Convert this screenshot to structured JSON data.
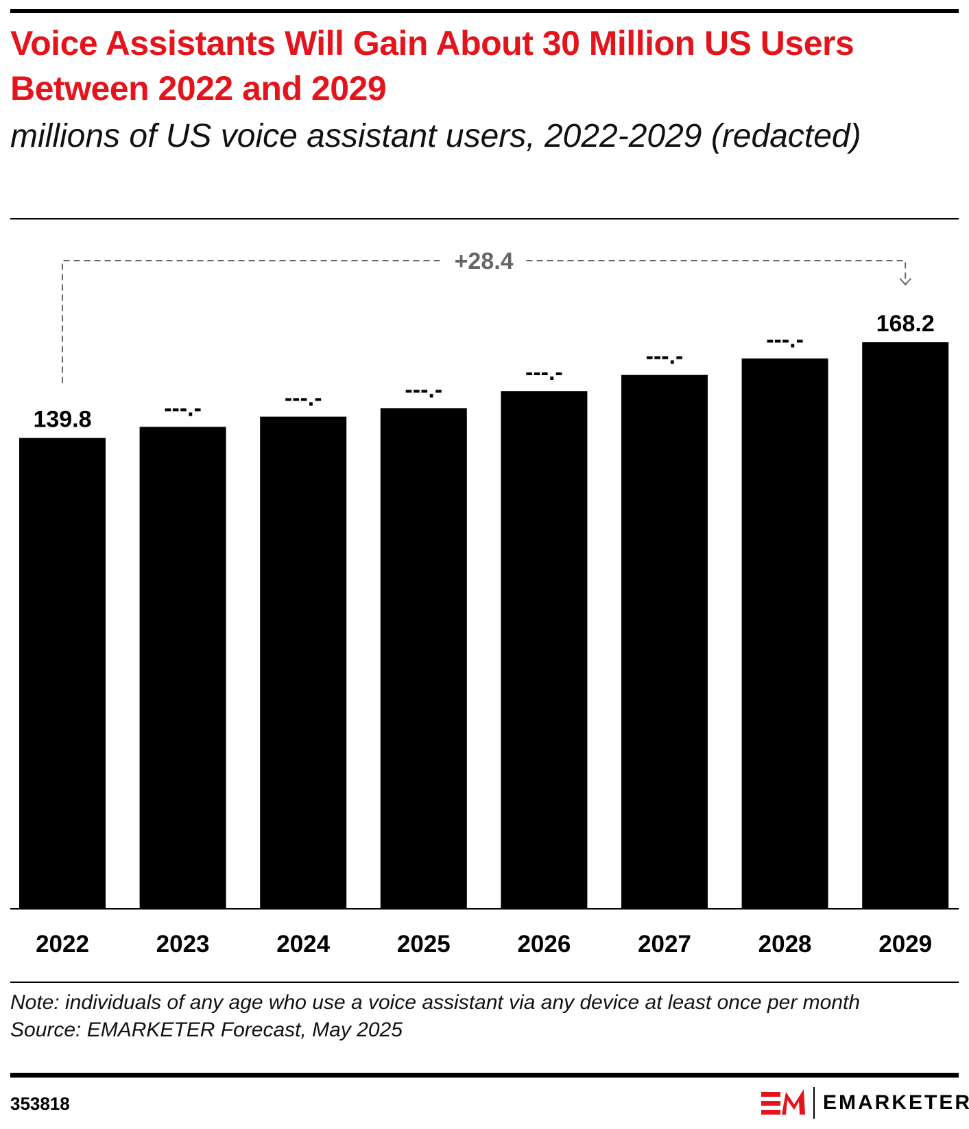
{
  "title": "Voice Assistants Will Gain About 30 Million US Users Between 2022 and 2029",
  "subtitle": "millions of US voice assistant users, 2022-2029 (redacted)",
  "note": "Note: individuals of any age who use a voice assistant via any device at least once per month",
  "source": "Source: EMARKETER Forecast, May 2025",
  "chart_id": "353818",
  "brand": "EMARKETER",
  "colors": {
    "title": "#e3141b",
    "bars": "#000000",
    "annotation": "#666666"
  },
  "chart_data": {
    "type": "bar",
    "categories": [
      "2022",
      "2023",
      "2024",
      "2025",
      "2026",
      "2027",
      "2028",
      "2029"
    ],
    "values": [
      139.8,
      143.1,
      146.1,
      148.6,
      153.7,
      158.5,
      163.4,
      168.2
    ],
    "data_labels": [
      "139.8",
      "---.-",
      "---.-",
      "---.-",
      "---.-",
      "---.-",
      "---.-",
      "168.2"
    ],
    "ylim": [
      0,
      170
    ],
    "grid": false,
    "annotation": {
      "text": "+28.4",
      "from": "2022",
      "to": "2029"
    }
  }
}
